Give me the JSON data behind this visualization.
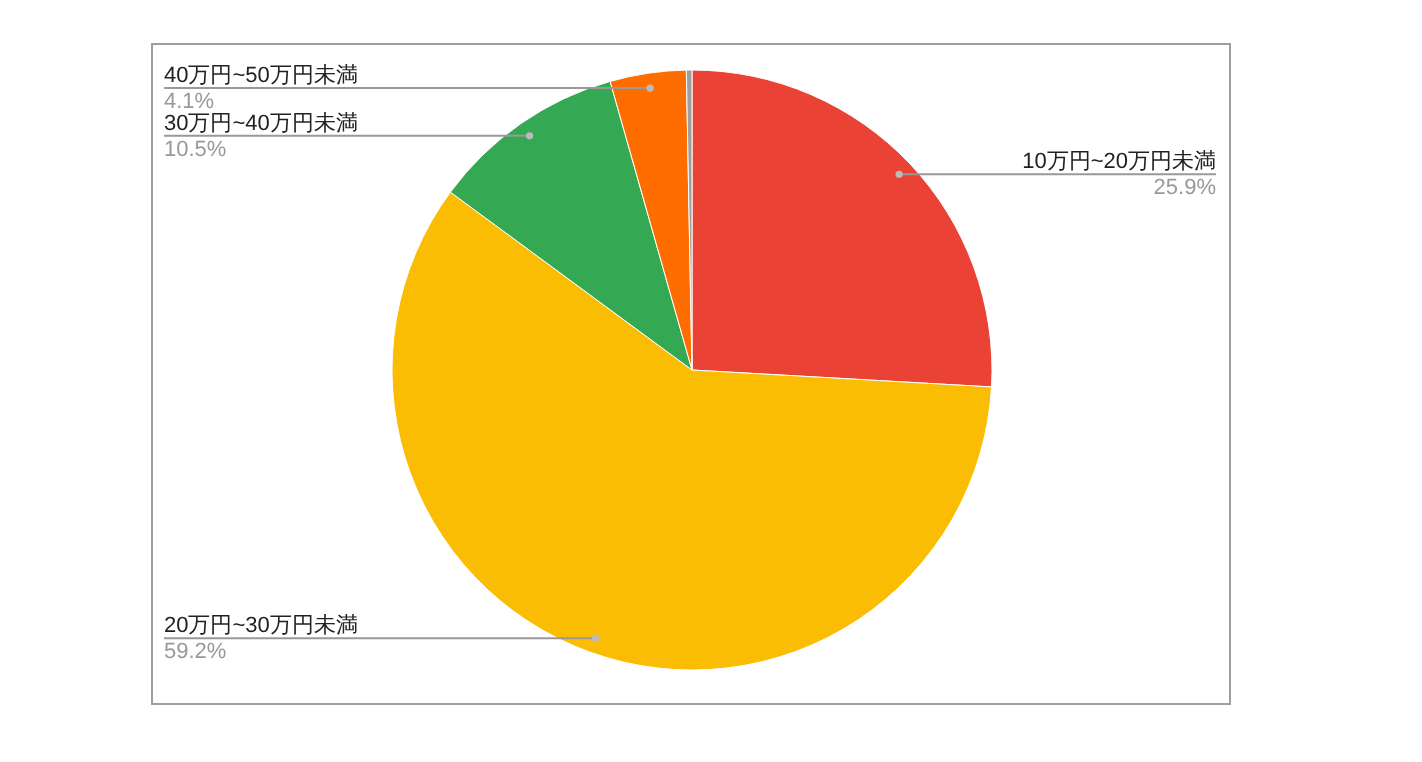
{
  "chart_data": {
    "type": "pie",
    "categories": [
      "10万円~20万円未満",
      "20万円~30万円未満",
      "30万円~40万円未満",
      "40万円~50万円未満",
      null
    ],
    "values": [
      25.9,
      59.2,
      10.5,
      4.1,
      0.3
    ],
    "colors": [
      "#ea4335",
      "#fbbc04",
      "#34a853",
      "#ff6d01",
      "#9e9e9e"
    ],
    "value_labels": [
      "25.9%",
      "59.2%",
      "10.5%",
      "4.1%",
      null
    ]
  }
}
